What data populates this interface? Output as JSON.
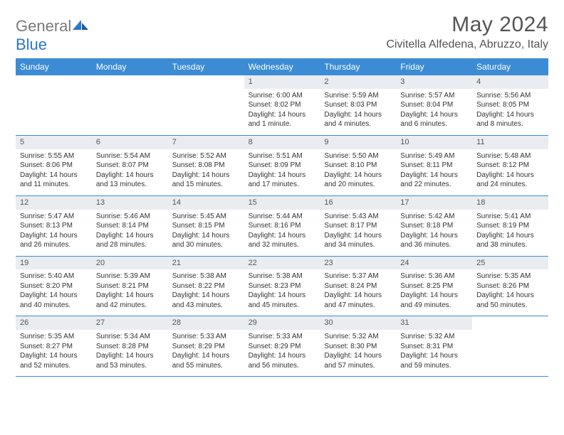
{
  "brand": {
    "text_a": "General",
    "text_b": "Blue"
  },
  "title": "May 2024",
  "location": "Civitella Alfedena, Abruzzo, Italy",
  "colors": {
    "header_bg": "#3b8cd4",
    "header_text": "#ffffff",
    "daynum_bg": "#e9edf1",
    "rule": "#3b8cd4",
    "title_color": "#555555",
    "body_text": "#333333"
  },
  "day_names": [
    "Sunday",
    "Monday",
    "Tuesday",
    "Wednesday",
    "Thursday",
    "Friday",
    "Saturday"
  ],
  "weeks": [
    [
      {
        "n": "",
        "sr": "",
        "ss": "",
        "dl": ""
      },
      {
        "n": "",
        "sr": "",
        "ss": "",
        "dl": ""
      },
      {
        "n": "",
        "sr": "",
        "ss": "",
        "dl": ""
      },
      {
        "n": "1",
        "sr": "Sunrise: 6:00 AM",
        "ss": "Sunset: 8:02 PM",
        "dl": "Daylight: 14 hours and 1 minute."
      },
      {
        "n": "2",
        "sr": "Sunrise: 5:59 AM",
        "ss": "Sunset: 8:03 PM",
        "dl": "Daylight: 14 hours and 4 minutes."
      },
      {
        "n": "3",
        "sr": "Sunrise: 5:57 AM",
        "ss": "Sunset: 8:04 PM",
        "dl": "Daylight: 14 hours and 6 minutes."
      },
      {
        "n": "4",
        "sr": "Sunrise: 5:56 AM",
        "ss": "Sunset: 8:05 PM",
        "dl": "Daylight: 14 hours and 8 minutes."
      }
    ],
    [
      {
        "n": "5",
        "sr": "Sunrise: 5:55 AM",
        "ss": "Sunset: 8:06 PM",
        "dl": "Daylight: 14 hours and 11 minutes."
      },
      {
        "n": "6",
        "sr": "Sunrise: 5:54 AM",
        "ss": "Sunset: 8:07 PM",
        "dl": "Daylight: 14 hours and 13 minutes."
      },
      {
        "n": "7",
        "sr": "Sunrise: 5:52 AM",
        "ss": "Sunset: 8:08 PM",
        "dl": "Daylight: 14 hours and 15 minutes."
      },
      {
        "n": "8",
        "sr": "Sunrise: 5:51 AM",
        "ss": "Sunset: 8:09 PM",
        "dl": "Daylight: 14 hours and 17 minutes."
      },
      {
        "n": "9",
        "sr": "Sunrise: 5:50 AM",
        "ss": "Sunset: 8:10 PM",
        "dl": "Daylight: 14 hours and 20 minutes."
      },
      {
        "n": "10",
        "sr": "Sunrise: 5:49 AM",
        "ss": "Sunset: 8:11 PM",
        "dl": "Daylight: 14 hours and 22 minutes."
      },
      {
        "n": "11",
        "sr": "Sunrise: 5:48 AM",
        "ss": "Sunset: 8:12 PM",
        "dl": "Daylight: 14 hours and 24 minutes."
      }
    ],
    [
      {
        "n": "12",
        "sr": "Sunrise: 5:47 AM",
        "ss": "Sunset: 8:13 PM",
        "dl": "Daylight: 14 hours and 26 minutes."
      },
      {
        "n": "13",
        "sr": "Sunrise: 5:46 AM",
        "ss": "Sunset: 8:14 PM",
        "dl": "Daylight: 14 hours and 28 minutes."
      },
      {
        "n": "14",
        "sr": "Sunrise: 5:45 AM",
        "ss": "Sunset: 8:15 PM",
        "dl": "Daylight: 14 hours and 30 minutes."
      },
      {
        "n": "15",
        "sr": "Sunrise: 5:44 AM",
        "ss": "Sunset: 8:16 PM",
        "dl": "Daylight: 14 hours and 32 minutes."
      },
      {
        "n": "16",
        "sr": "Sunrise: 5:43 AM",
        "ss": "Sunset: 8:17 PM",
        "dl": "Daylight: 14 hours and 34 minutes."
      },
      {
        "n": "17",
        "sr": "Sunrise: 5:42 AM",
        "ss": "Sunset: 8:18 PM",
        "dl": "Daylight: 14 hours and 36 minutes."
      },
      {
        "n": "18",
        "sr": "Sunrise: 5:41 AM",
        "ss": "Sunset: 8:19 PM",
        "dl": "Daylight: 14 hours and 38 minutes."
      }
    ],
    [
      {
        "n": "19",
        "sr": "Sunrise: 5:40 AM",
        "ss": "Sunset: 8:20 PM",
        "dl": "Daylight: 14 hours and 40 minutes."
      },
      {
        "n": "20",
        "sr": "Sunrise: 5:39 AM",
        "ss": "Sunset: 8:21 PM",
        "dl": "Daylight: 14 hours and 42 minutes."
      },
      {
        "n": "21",
        "sr": "Sunrise: 5:38 AM",
        "ss": "Sunset: 8:22 PM",
        "dl": "Daylight: 14 hours and 43 minutes."
      },
      {
        "n": "22",
        "sr": "Sunrise: 5:38 AM",
        "ss": "Sunset: 8:23 PM",
        "dl": "Daylight: 14 hours and 45 minutes."
      },
      {
        "n": "23",
        "sr": "Sunrise: 5:37 AM",
        "ss": "Sunset: 8:24 PM",
        "dl": "Daylight: 14 hours and 47 minutes."
      },
      {
        "n": "24",
        "sr": "Sunrise: 5:36 AM",
        "ss": "Sunset: 8:25 PM",
        "dl": "Daylight: 14 hours and 49 minutes."
      },
      {
        "n": "25",
        "sr": "Sunrise: 5:35 AM",
        "ss": "Sunset: 8:26 PM",
        "dl": "Daylight: 14 hours and 50 minutes."
      }
    ],
    [
      {
        "n": "26",
        "sr": "Sunrise: 5:35 AM",
        "ss": "Sunset: 8:27 PM",
        "dl": "Daylight: 14 hours and 52 minutes."
      },
      {
        "n": "27",
        "sr": "Sunrise: 5:34 AM",
        "ss": "Sunset: 8:28 PM",
        "dl": "Daylight: 14 hours and 53 minutes."
      },
      {
        "n": "28",
        "sr": "Sunrise: 5:33 AM",
        "ss": "Sunset: 8:29 PM",
        "dl": "Daylight: 14 hours and 55 minutes."
      },
      {
        "n": "29",
        "sr": "Sunrise: 5:33 AM",
        "ss": "Sunset: 8:29 PM",
        "dl": "Daylight: 14 hours and 56 minutes."
      },
      {
        "n": "30",
        "sr": "Sunrise: 5:32 AM",
        "ss": "Sunset: 8:30 PM",
        "dl": "Daylight: 14 hours and 57 minutes."
      },
      {
        "n": "31",
        "sr": "Sunrise: 5:32 AM",
        "ss": "Sunset: 8:31 PM",
        "dl": "Daylight: 14 hours and 59 minutes."
      },
      {
        "n": "",
        "sr": "",
        "ss": "",
        "dl": ""
      }
    ]
  ]
}
